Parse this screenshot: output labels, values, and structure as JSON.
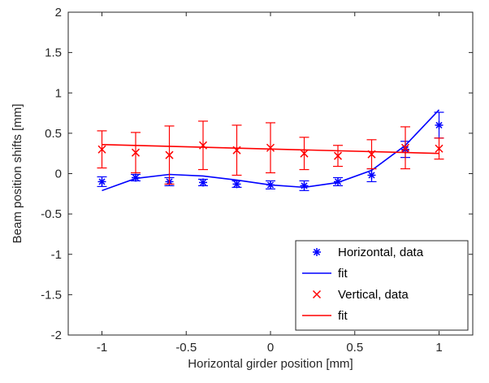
{
  "chart_data": {
    "type": "scatter",
    "xlabel": "Horizontal girder position [mm]",
    "ylabel": "Beam position shifts [mm]",
    "xlim": [
      -1.2,
      1.2
    ],
    "ylim": [
      -2,
      2
    ],
    "xticks": [
      -1,
      -0.5,
      0,
      0.5,
      1
    ],
    "xtick_labels": [
      "-1",
      "-0.5",
      "0",
      "0.5",
      "1"
    ],
    "yticks": [
      -2,
      -1.5,
      -1,
      -0.5,
      0,
      0.5,
      1,
      1.5,
      2
    ],
    "ytick_labels": [
      "-2",
      "-1.5",
      "-1",
      "-0.5",
      "0",
      "0.5",
      "1",
      "1.5",
      "2"
    ],
    "grid": false,
    "legend_position": "bottom-right",
    "colors": {
      "horizontal": "#0000ff",
      "vertical": "#ff0000",
      "axis": "#262626"
    },
    "series": [
      {
        "name": "Horizontal, data",
        "kind": "points",
        "marker": "asterisk",
        "color": "#0000ff",
        "x": [
          -1,
          -0.8,
          -0.6,
          -0.4,
          -0.2,
          0,
          0.2,
          0.4,
          0.6,
          0.8,
          1
        ],
        "y": [
          -0.1,
          -0.05,
          -0.1,
          -0.11,
          -0.13,
          -0.14,
          -0.15,
          -0.1,
          -0.02,
          0.3,
          0.6
        ],
        "yerr": [
          0.06,
          0.04,
          0.05,
          0.04,
          0.04,
          0.05,
          0.06,
          0.05,
          0.08,
          0.1,
          0.16
        ]
      },
      {
        "name": "fit",
        "kind": "line",
        "color": "#0000ff",
        "x": [
          -1,
          -0.8,
          -0.6,
          -0.4,
          -0.2,
          0,
          0.2,
          0.4,
          0.6,
          0.8,
          1
        ],
        "y": [
          -0.21,
          -0.06,
          -0.01,
          -0.03,
          -0.08,
          -0.14,
          -0.17,
          -0.11,
          0.04,
          0.35,
          0.79
        ]
      },
      {
        "name": "Vertical, data",
        "kind": "points",
        "marker": "x",
        "color": "#ff0000",
        "x": [
          -1,
          -0.8,
          -0.6,
          -0.4,
          -0.2,
          0,
          0.2,
          0.4,
          0.6,
          0.8,
          1
        ],
        "y": [
          0.3,
          0.26,
          0.23,
          0.35,
          0.29,
          0.32,
          0.25,
          0.22,
          0.24,
          0.32,
          0.31
        ],
        "yerr": [
          0.23,
          0.25,
          0.36,
          0.3,
          0.31,
          0.31,
          0.2,
          0.13,
          0.18,
          0.26,
          0.13
        ]
      },
      {
        "name": "fit",
        "kind": "line",
        "color": "#ff0000",
        "x": [
          -1,
          1
        ],
        "y": [
          0.36,
          0.25
        ]
      }
    ]
  }
}
